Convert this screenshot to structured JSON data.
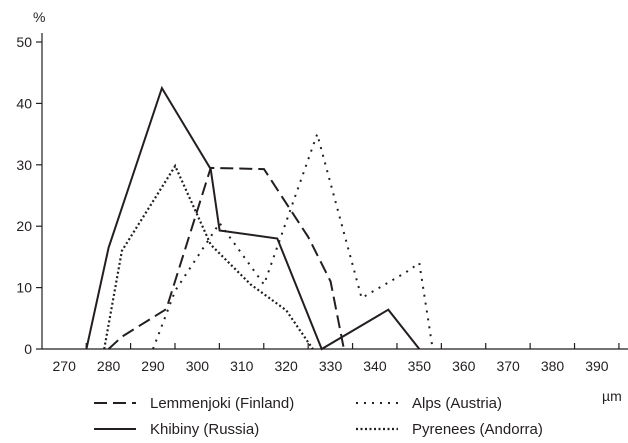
{
  "chart_data": {
    "type": "line",
    "title": "",
    "ylabel": "%",
    "xlabel": "µm",
    "xlim": [
      265,
      397
    ],
    "ylim": [
      0,
      50
    ],
    "x_ticks": [
      270,
      280,
      290,
      300,
      310,
      320,
      330,
      340,
      350,
      360,
      370,
      380,
      390
    ],
    "y_ticks": [
      0,
      10,
      20,
      30,
      40,
      50
    ],
    "grid": false,
    "legend_position": "bottom",
    "series": [
      {
        "name": "Lemmenjoki (Finland)",
        "style": "dashed",
        "points": [
          [
            280,
            0
          ],
          [
            283,
            2
          ],
          [
            293,
            6.5
          ],
          [
            303,
            29.5
          ],
          [
            315,
            29.3
          ],
          [
            325,
            18.2
          ],
          [
            330,
            11
          ],
          [
            333,
            0
          ]
        ]
      },
      {
        "name": "Alps (Austria)",
        "style": "dotted-sparse",
        "points": [
          [
            290,
            0
          ],
          [
            295,
            9.5
          ],
          [
            305,
            20.5
          ],
          [
            315,
            10.5
          ],
          [
            327,
            35
          ],
          [
            337,
            8.3
          ],
          [
            347,
            12.5
          ],
          [
            350,
            14
          ],
          [
            353,
            0
          ]
        ]
      },
      {
        "name": "Khibiny (Russia)",
        "style": "solid",
        "points": [
          [
            275,
            0
          ],
          [
            280,
            16.5
          ],
          [
            292,
            42.5
          ],
          [
            303,
            29.3
          ],
          [
            305,
            19.3
          ],
          [
            318,
            18
          ],
          [
            328,
            0
          ],
          [
            343,
            6.4
          ],
          [
            350,
            0
          ]
        ]
      },
      {
        "name": "Pyrenees (Andorra)",
        "style": "dotted-dense",
        "points": [
          [
            279,
            0
          ],
          [
            283,
            16
          ],
          [
            295,
            29.8
          ],
          [
            303,
            17
          ],
          [
            312,
            10.5
          ],
          [
            320,
            6.3
          ],
          [
            326,
            0
          ]
        ]
      }
    ]
  }
}
